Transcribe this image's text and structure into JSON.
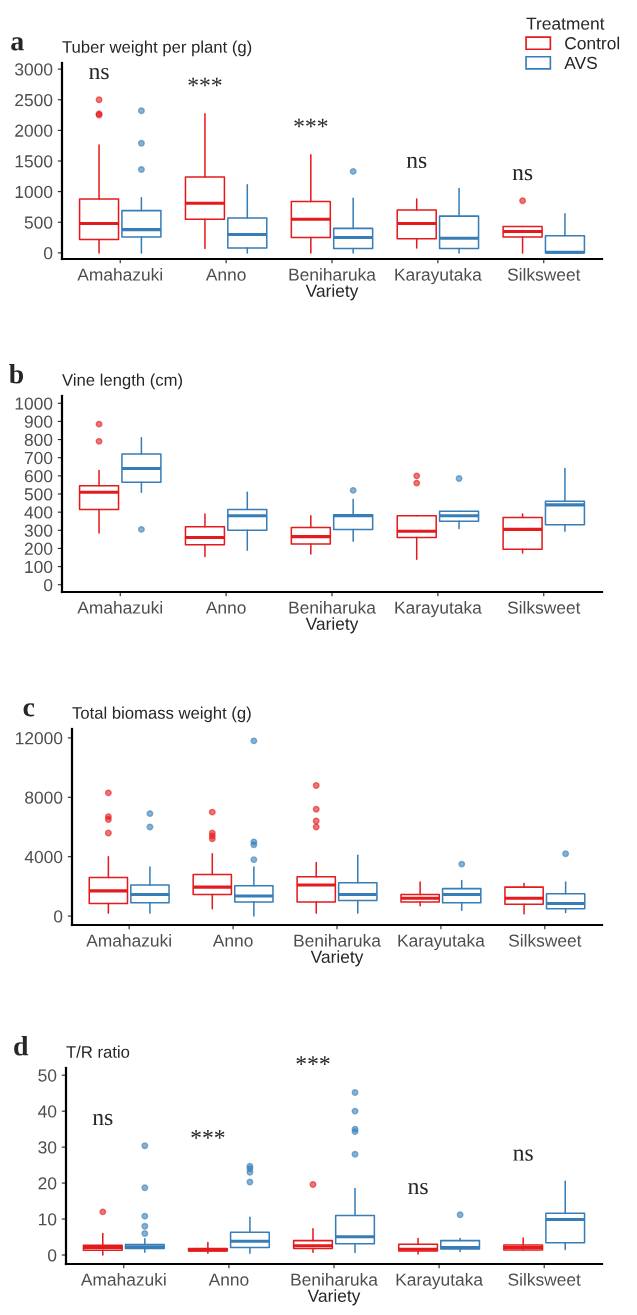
{
  "chart_data": [
    {
      "type": "box",
      "title": "Tuber weight per plant (g)",
      "xlabel": "Variety",
      "legend_title": "Treatment",
      "legend": "top right",
      "grid": false,
      "categories": [
        "Amahazuki",
        "Anno",
        "Beniharuka",
        "Karayutaka",
        "Silksweet"
      ],
      "ylim": [
        -100,
        3100
      ],
      "yticks": [
        0,
        500,
        1000,
        1500,
        2000,
        2500,
        3000
      ],
      "annotations": [
        "a",
        "ns",
        "***",
        "***",
        "ns",
        "ns"
      ],
      "series": [
        {
          "name": "Control",
          "color": "#e41a1c",
          "boxes": [
            {
              "low": 0,
              "q1": 220,
              "median": 480,
              "q3": 880,
              "high": 1760,
              "outliers": [
                2250,
                2270,
                2500
              ]
            },
            {
              "low": 70,
              "q1": 550,
              "median": 810,
              "q3": 1240,
              "high": 2270
            },
            {
              "low": 0,
              "q1": 250,
              "median": 550,
              "q3": 840,
              "high": 1600
            },
            {
              "low": 80,
              "q1": 230,
              "median": 480,
              "q3": 700,
              "high": 880
            },
            {
              "low": 0,
              "q1": 260,
              "median": 350,
              "q3": 430,
              "high": 430,
              "outliers": [
                850
              ]
            }
          ]
        },
        {
          "name": "AVS",
          "color": "#377eb8",
          "boxes": [
            {
              "low": 0,
              "q1": 260,
              "median": 380,
              "q3": 690,
              "high": 900,
              "outliers": [
                1360,
                1790,
                2320
              ]
            },
            {
              "low": 0,
              "q1": 80,
              "median": 300,
              "q3": 570,
              "high": 1110
            },
            {
              "low": 0,
              "q1": 70,
              "median": 250,
              "q3": 400,
              "high": 890,
              "outliers": [
                1330
              ]
            },
            {
              "low": 0,
              "q1": 70,
              "median": 240,
              "q3": 600,
              "high": 1050
            },
            {
              "low": 0,
              "q1": 0,
              "median": 10,
              "q3": 280,
              "high": 640
            }
          ]
        }
      ]
    },
    {
      "type": "box",
      "title": "Vine length (cm)",
      "xlabel": "Variety",
      "grid": false,
      "categories": [
        "Amahazuki",
        "Anno",
        "Beniharuka",
        "Karayutaka",
        "Silksweet"
      ],
      "ylim": [
        -40,
        1040
      ],
      "yticks": [
        0,
        100,
        200,
        300,
        400,
        500,
        600,
        700,
        800,
        900,
        1000
      ],
      "annotations": [
        "b"
      ],
      "series": [
        {
          "color": "#e41a1c",
          "boxes": [
            {
              "low": 285,
              "q1": 415,
              "median": 510,
              "q3": 545,
              "high": 630,
              "outliers": [
                790,
                885
              ]
            },
            {
              "low": 155,
              "q1": 220,
              "median": 260,
              "q3": 320,
              "high": 390
            },
            {
              "low": 170,
              "q1": 225,
              "median": 265,
              "q3": 315,
              "high": 380
            },
            {
              "low": 140,
              "q1": 260,
              "median": 295,
              "q3": 380,
              "high": 380,
              "outliers": [
                560,
                600
              ]
            },
            {
              "low": 175,
              "q1": 195,
              "median": 305,
              "q3": 370,
              "high": 390
            }
          ]
        },
        {
          "color": "#377eb8",
          "boxes": [
            {
              "low": 510,
              "q1": 565,
              "median": 640,
              "q3": 720,
              "high": 810,
              "outliers": [
                305
              ]
            },
            {
              "low": 190,
              "q1": 300,
              "median": 380,
              "q3": 415,
              "high": 510
            },
            {
              "low": 240,
              "q1": 305,
              "median": 380,
              "q3": 385,
              "high": 470,
              "outliers": [
                520
              ]
            },
            {
              "low": 310,
              "q1": 350,
              "median": 380,
              "q3": 405,
              "high": 405,
              "outliers": [
                585
              ]
            },
            {
              "low": 295,
              "q1": 330,
              "median": 440,
              "q3": 460,
              "high": 640
            }
          ]
        }
      ]
    },
    {
      "type": "box",
      "title": "Total biomass weight (g)",
      "xlabel": "Variety",
      "grid": false,
      "categories": [
        "Amahazuki",
        "Anno",
        "Beniharuka",
        "Karayutaka",
        "Silksweet"
      ],
      "ylim": [
        -600,
        12600
      ],
      "yticks": [
        0,
        4000,
        8000,
        12000
      ],
      "annotations": [
        "c"
      ],
      "series": [
        {
          "color": "#e41a1c",
          "boxes": [
            {
              "low": 200,
              "q1": 850,
              "median": 1700,
              "q3": 2600,
              "high": 4000,
              "outliers": [
                5600,
                6500,
                6700,
                8300
              ]
            },
            {
              "low": 500,
              "q1": 1450,
              "median": 1950,
              "q3": 2800,
              "high": 4200,
              "outliers": [
                5200,
                5400,
                5600,
                7000
              ]
            },
            {
              "low": 200,
              "q1": 950,
              "median": 2100,
              "q3": 2650,
              "high": 3600,
              "outliers": [
                6000,
                6400,
                7200,
                8800
              ]
            },
            {
              "low": 700,
              "q1": 950,
              "median": 1200,
              "q3": 1450,
              "high": 2300
            },
            {
              "low": 150,
              "q1": 800,
              "median": 1200,
              "q3": 1950,
              "high": 2200
            }
          ]
        },
        {
          "color": "#377eb8",
          "boxes": [
            {
              "low": 200,
              "q1": 900,
              "median": 1450,
              "q3": 2100,
              "high": 3300,
              "outliers": [
                6000,
                6900
              ]
            },
            {
              "low": 0,
              "q1": 950,
              "median": 1350,
              "q3": 2050,
              "high": 3300,
              "outliers": [
                3800,
                4800,
                5000,
                11800
              ]
            },
            {
              "low": 200,
              "q1": 1050,
              "median": 1450,
              "q3": 2250,
              "high": 4100
            },
            {
              "low": 400,
              "q1": 900,
              "median": 1450,
              "q3": 1850,
              "high": 2400,
              "outliers": [
                3500
              ]
            },
            {
              "low": 250,
              "q1": 500,
              "median": 850,
              "q3": 1500,
              "high": 2300,
              "outliers": [
                4200
              ]
            }
          ]
        }
      ]
    },
    {
      "type": "box",
      "title": "T/R ratio",
      "xlabel": "Variety",
      "grid": false,
      "categories": [
        "Amahazuki",
        "Anno",
        "Beniharuka",
        "Karayutaka",
        "Silksweet"
      ],
      "ylim": [
        -2.5,
        52
      ],
      "yticks": [
        0,
        10,
        20,
        30,
        40,
        50
      ],
      "annotations": [
        "d",
        "ns",
        "***",
        "***",
        "ns",
        "ns"
      ],
      "series": [
        {
          "color": "#e41a1c",
          "boxes": [
            {
              "low": 0,
              "q1": 1.3,
              "median": 2.1,
              "q3": 2.7,
              "high": 6,
              "outliers": [
                12
              ]
            },
            {
              "low": 0.5,
              "q1": 1.1,
              "median": 1.4,
              "q3": 1.8,
              "high": 3.5
            },
            {
              "low": 0.8,
              "q1": 1.8,
              "median": 2.6,
              "q3": 4,
              "high": 7.3,
              "outliers": [
                19.6
              ]
            },
            {
              "low": 0.3,
              "q1": 1.1,
              "median": 1.6,
              "q3": 3,
              "high": 4.6
            },
            {
              "low": 1.4,
              "q1": 1.4,
              "median": 2.1,
              "q3": 2.8,
              "high": 4.7
            }
          ]
        },
        {
          "color": "#377eb8",
          "boxes": [
            {
              "low": 0.8,
              "q1": 1.8,
              "median": 2.3,
              "q3": 2.9,
              "high": 4.5,
              "outliers": [
                6,
                8,
                10.8,
                18.7,
                30.4
              ]
            },
            {
              "low": 0.5,
              "q1": 2.1,
              "median": 3.8,
              "q3": 6.3,
              "high": 10.5,
              "outliers": [
                20.3,
                23,
                24,
                24.7
              ]
            },
            {
              "low": 0.7,
              "q1": 3.1,
              "median": 5.1,
              "q3": 11,
              "high": 18.5,
              "outliers": [
                28,
                34.3,
                35,
                40,
                45.2
              ]
            },
            {
              "low": 1,
              "q1": 1.7,
              "median": 2.1,
              "q3": 4,
              "high": 4.6,
              "outliers": [
                11.2
              ]
            },
            {
              "low": 1.5,
              "q1": 3.4,
              "median": 9.9,
              "q3": 11.6,
              "high": 20.5
            }
          ]
        }
      ]
    }
  ]
}
